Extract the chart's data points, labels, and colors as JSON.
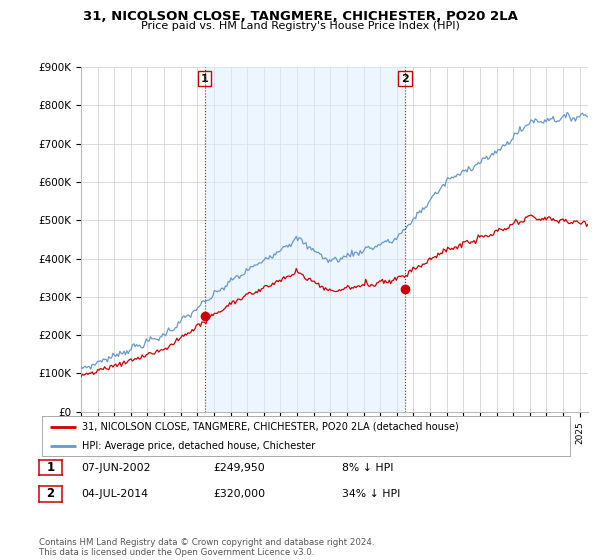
{
  "title": "31, NICOLSON CLOSE, TANGMERE, CHICHESTER, PO20 2LA",
  "subtitle": "Price paid vs. HM Land Registry's House Price Index (HPI)",
  "ylabel_ticks": [
    "£0",
    "£100K",
    "£200K",
    "£300K",
    "£400K",
    "£500K",
    "£600K",
    "£700K",
    "£800K",
    "£900K"
  ],
  "ytick_values": [
    0,
    100000,
    200000,
    300000,
    400000,
    500000,
    600000,
    700000,
    800000,
    900000
  ],
  "ylim": [
    0,
    900000
  ],
  "xlim_start": 1995.0,
  "xlim_end": 2025.5,
  "purchase1": {
    "date_num": 2002.44,
    "price": 249950,
    "label": "1"
  },
  "purchase2": {
    "date_num": 2014.5,
    "price": 320000,
    "label": "2"
  },
  "legend_line1": "31, NICOLSON CLOSE, TANGMERE, CHICHESTER, PO20 2LA (detached house)",
  "legend_line2": "HPI: Average price, detached house, Chichester",
  "footer": "Contains HM Land Registry data © Crown copyright and database right 2024.\nThis data is licensed under the Open Government Licence v3.0.",
  "line_color_red": "#cc0000",
  "line_color_blue": "#6699cc",
  "fill_color_blue": "#ddeeff",
  "vline_color": "#dd0000",
  "background_color": "#ffffff",
  "grid_color": "#cccccc",
  "table_rows": [
    {
      "num": "1",
      "date": "07-JUN-2002",
      "price": "£249,950",
      "hpi": "8% ↓ HPI"
    },
    {
      "num": "2",
      "date": "04-JUL-2014",
      "price": "£320,000",
      "hpi": "34% ↓ HPI"
    }
  ]
}
